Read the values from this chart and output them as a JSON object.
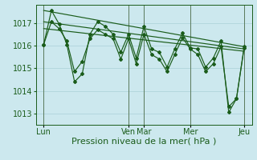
{
  "background_color": "#cce8ee",
  "grid_color": "#aad0d8",
  "line_color": "#1a5c1a",
  "title": "Pression niveau de la mer( hPa )",
  "tick_fontsize": 7,
  "xlabel_fontsize": 8,
  "ylim": [
    1012.5,
    1017.8
  ],
  "yticks": [
    1013,
    1014,
    1015,
    1016,
    1017
  ],
  "xlim": [
    0,
    168
  ],
  "day_labels": [
    "Lun",
    "Ven",
    "Mar",
    "Mer",
    "Jeu"
  ],
  "day_positions": [
    6,
    72,
    84,
    120,
    162
  ],
  "trend_lines": [
    {
      "x": [
        6,
        162
      ],
      "y": [
        1017.55,
        1015.95
      ]
    },
    {
      "x": [
        6,
        162
      ],
      "y": [
        1017.05,
        1015.85
      ]
    },
    {
      "x": [
        6,
        162
      ],
      "y": [
        1016.75,
        1015.75
      ]
    }
  ],
  "main_line_x": [
    6,
    12,
    18,
    24,
    30,
    36,
    42,
    48,
    54,
    60,
    66,
    72,
    78,
    84,
    90,
    96,
    102,
    108,
    114,
    120,
    126,
    132,
    138,
    144,
    150,
    156,
    162
  ],
  "main_line_y": [
    1016.05,
    1017.55,
    1016.95,
    1016.05,
    1014.4,
    1014.75,
    1016.5,
    1017.05,
    1016.85,
    1016.5,
    1015.7,
    1016.5,
    1015.45,
    1016.85,
    1015.85,
    1015.7,
    1015.05,
    1015.85,
    1016.55,
    1015.9,
    1015.85,
    1015.05,
    1015.45,
    1016.2,
    1013.05,
    1013.65,
    1015.95
  ],
  "sec_line_x": [
    6,
    12,
    18,
    24,
    30,
    36,
    42,
    48,
    54,
    60,
    66,
    72,
    78,
    84,
    90,
    96,
    102,
    108,
    114,
    120,
    126,
    132,
    138,
    144,
    150,
    156,
    162
  ],
  "sec_line_y": [
    1016.05,
    1017.05,
    1016.75,
    1016.2,
    1014.85,
    1015.3,
    1016.3,
    1016.7,
    1016.5,
    1016.3,
    1015.4,
    1016.3,
    1015.2,
    1016.5,
    1015.6,
    1015.4,
    1014.85,
    1015.6,
    1016.35,
    1015.85,
    1015.6,
    1014.85,
    1015.2,
    1015.95,
    1013.3,
    1013.65,
    1015.9
  ],
  "vline_positions": [
    6,
    72,
    84,
    120,
    162
  ]
}
